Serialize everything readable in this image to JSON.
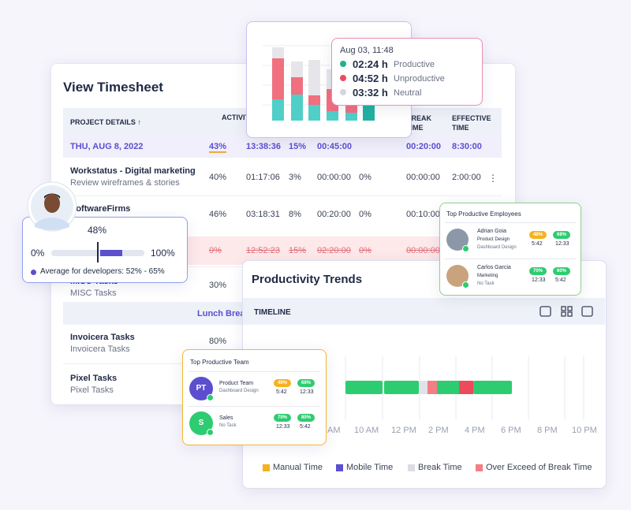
{
  "timesheet": {
    "title": "View Timesheet",
    "columns": [
      "PROJECT DETAILS ↑",
      "ACTIVITY",
      "BREAK TIME",
      "EFFECTIVE TIME"
    ],
    "summary": [
      "THU, AUG 8, 2022",
      "43%",
      "13:38:36",
      "15%",
      "00:45:00",
      "00:20:00",
      "8:30:00"
    ],
    "rows": [
      {
        "title": "Workstatus - Digital marketing",
        "subtitle": "Review wireframes & stories",
        "cells": [
          "40%",
          "01:17:06",
          "3%",
          "00:00:00",
          "0%",
          "00:00:00",
          "2:00:00"
        ]
      },
      {
        "title": "SoftwareFirms",
        "cells": [
          "46%",
          "03:18:31",
          "8%",
          "00:20:00",
          "0%",
          "00:10:00"
        ]
      },
      {
        "cells": [
          "0%",
          "12:52:23",
          "15%",
          "02:20:00",
          "0%",
          "00:00:00"
        ]
      },
      {
        "title": "MISC Tasks",
        "subtitle": "MISC Tasks",
        "cells": [
          "30%"
        ]
      },
      {
        "title": "Invoicera Tasks",
        "subtitle": "Invoicera Tasks",
        "cells": [
          "80%"
        ]
      },
      {
        "title": "Pixel Tasks",
        "subtitle": "Pixel Tasks"
      }
    ],
    "lunch": "Lunch Break"
  },
  "activity_tooltip": {
    "time": "Aug 03, 11:48",
    "items": [
      {
        "value": "02:24 h",
        "label": "Productive"
      },
      {
        "value": "04:52 h",
        "label": "Unproductive"
      },
      {
        "value": "03:32 h",
        "label": "Neutral"
      }
    ]
  },
  "developer_card": {
    "value": "48%",
    "min": "0%",
    "max": "100%",
    "note": "Average for developers: 52% - 65%"
  },
  "employees": {
    "title": "Top Productive Employees",
    "people": [
      {
        "name": "Adrian Goia",
        "role": "Product Design",
        "task": "Dashboard Design",
        "scores": [
          "48%",
          "68%"
        ],
        "times": [
          "5:42",
          "12:33"
        ]
      },
      {
        "name": "Carlos Garcia",
        "role": "Marketing",
        "task": "No Task",
        "scores": [
          "70%",
          "60%"
        ],
        "times": [
          "12:33",
          "5:42"
        ]
      }
    ]
  },
  "trends": {
    "title": "Productivity Trends",
    "tab": "TIMELINE",
    "hours": [
      "AM",
      "10 AM",
      "12 PM",
      "2 PM",
      "4 PM",
      "6 PM",
      "8 PM",
      "10 PM"
    ],
    "legend": [
      "Manual Time",
      "Mobile Time",
      "Break Time",
      "Over Exceed of Break Time"
    ]
  },
  "team": {
    "title": "Top Productive Team",
    "teams": [
      {
        "initials": "PT",
        "name": "Product Team",
        "task": "Dashboard Design",
        "scores": [
          "46%",
          "68%"
        ],
        "times": [
          "5:42",
          "12:33"
        ]
      },
      {
        "initials": "S",
        "name": "Sales",
        "task": "No Task",
        "scores": [
          "70%",
          "80%"
        ],
        "times": [
          "12:33",
          "5:42"
        ]
      }
    ]
  }
}
